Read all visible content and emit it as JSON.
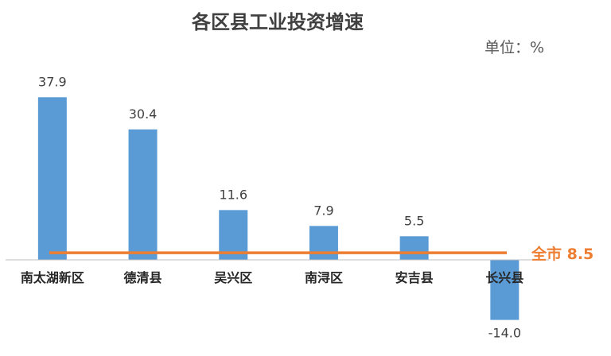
{
  "chart_data": {
    "type": "bar",
    "title": "各区县工业投资增速",
    "unit_label": "单位：%",
    "categories": [
      "南太湖新区",
      "德清县",
      "吴兴区",
      "南浔区",
      "安吉县",
      "长兴县"
    ],
    "series": [
      {
        "values": [
          37.9,
          30.4,
          11.6,
          7.9,
          5.5,
          -14.0
        ]
      }
    ],
    "value_labels": [
      "37.9",
      "30.4",
      "11.6",
      "7.9",
      "5.5",
      "-14.0"
    ],
    "reference_line": {
      "label": "全市 8.5",
      "value": 8.5
    },
    "ylim": [
      -14.0,
      37.9
    ],
    "grid": false,
    "legend": "none"
  },
  "colors": {
    "bar": "#5b9bd5",
    "reference_line": "#ed7d31",
    "axis": "#bfbfbf"
  }
}
